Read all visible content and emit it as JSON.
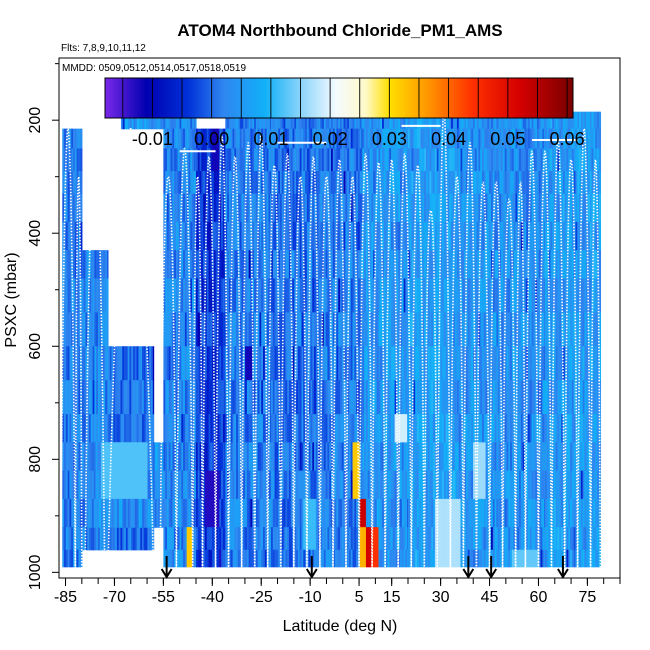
{
  "chart_data": {
    "type": "heatmap",
    "title": "ATOM4 Northbound Chloride_PM1_AMS",
    "flights_label": "Flts: 7,8,9,10,11,12",
    "dates_label": "MMDD: 0509,0512,0514,0517,0518,0519",
    "xlabel": "Latitude (deg N)",
    "ylabel": "PSXC (mbar)",
    "xlim": [
      -87,
      85
    ],
    "ylim": [
      1010,
      90
    ],
    "x_tick_labels": [
      "-85",
      "-70",
      "-55",
      "-40",
      "-25",
      "-10",
      "5",
      "15",
      "30",
      "45",
      "60",
      "75"
    ],
    "x_tick_values": [
      -85,
      -70,
      -55,
      -40,
      -25,
      -10,
      5,
      15,
      30,
      45,
      60,
      75
    ],
    "x_minor_ticks": [
      -85,
      -80,
      -75,
      -70,
      -65,
      -60,
      -55,
      -50,
      -45,
      -40,
      -35,
      -30,
      -25,
      -20,
      -15,
      -10,
      -5,
      0,
      5,
      10,
      15,
      20,
      25,
      30,
      35,
      40,
      45,
      50,
      55,
      60,
      65,
      70,
      75,
      80,
      85
    ],
    "y_tick_labels": [
      "200",
      "400",
      "600",
      "800",
      "1000"
    ],
    "y_tick_values": [
      200,
      400,
      600,
      800,
      1000
    ],
    "colorbar": {
      "min": -0.018,
      "max": 0.061,
      "tick_labels": [
        "-0.01",
        "0.00",
        "0.01",
        "0.02",
        "0.03",
        "0.04",
        "0.05",
        "0.06"
      ],
      "tick_values": [
        -0.01,
        0.0,
        0.01,
        0.02,
        0.03,
        0.04,
        0.05,
        0.06
      ],
      "stops": [
        {
          "v": -0.018,
          "c": "#7a28e8"
        },
        {
          "v": -0.011,
          "c": "#0000b0"
        },
        {
          "v": -0.004,
          "c": "#0030d8"
        },
        {
          "v": 0.002,
          "c": "#2f86f0"
        },
        {
          "v": 0.009,
          "c": "#11b0f8"
        },
        {
          "v": 0.015,
          "c": "#8ad4fa"
        },
        {
          "v": 0.021,
          "c": "#f4fbff"
        },
        {
          "v": 0.026,
          "c": "#fff9c8"
        },
        {
          "v": 0.03,
          "c": "#ffe000"
        },
        {
          "v": 0.037,
          "c": "#ff9000"
        },
        {
          "v": 0.044,
          "c": "#ff3000"
        },
        {
          "v": 0.052,
          "c": "#d40000"
        },
        {
          "v": 0.061,
          "c": "#780000"
        }
      ]
    },
    "arrow_latitudes": [
      -54,
      -9.5,
      38.5,
      45.5,
      67.5
    ],
    "background_value": 0.004,
    "pressure_levels": [
      185,
      215,
      250,
      290,
      330,
      380,
      430,
      480,
      540,
      600,
      660,
      720,
      770,
      820,
      870,
      920,
      960,
      990
    ],
    "columns": [
      {
        "lat": [
          -86,
          -80
        ],
        "p": [
          210,
          990
        ],
        "base": 0.002
      },
      {
        "lat": [
          -80,
          -72
        ],
        "p": [
          440,
          960
        ],
        "base": 0.003
      },
      {
        "lat": [
          -72,
          -58
        ],
        "p": [
          600,
          970
        ],
        "base": 0.001
      },
      {
        "lat": [
          -78,
          -55
        ],
        "p": [
          760,
          900
        ],
        "base": 0.0045
      },
      {
        "lat": [
          -68,
          -52
        ],
        "p": [
          160,
          200
        ],
        "base": 0.005
      },
      {
        "lat": [
          -55,
          -45
        ],
        "p": [
          160,
          990
        ],
        "base": 0.003
      },
      {
        "lat": [
          -45,
          -36
        ],
        "p": [
          230,
          980
        ],
        "base": -0.004
      },
      {
        "lat": [
          -36,
          -22
        ],
        "p": [
          160,
          990
        ],
        "base": 0.002
      },
      {
        "lat": [
          -22,
          -8
        ],
        "p": [
          160,
          990
        ],
        "base": 0.001
      },
      {
        "lat": [
          -8,
          6
        ],
        "p": [
          160,
          990
        ],
        "base": 0.002
      },
      {
        "lat": [
          6,
          20
        ],
        "p": [
          160,
          990
        ],
        "base": 0.005
      },
      {
        "lat": [
          20,
          35
        ],
        "p": [
          160,
          990
        ],
        "base": 0.006
      },
      {
        "lat": [
          35,
          48
        ],
        "p": [
          160,
          990
        ],
        "base": 0.0045
      },
      {
        "lat": [
          48,
          62
        ],
        "p": [
          160,
          990
        ],
        "base": 0.004
      },
      {
        "lat": [
          62,
          79
        ],
        "p": [
          180,
          990
        ],
        "base": 0.0055
      }
    ],
    "hotspots": [
      {
        "lat": [
          7,
          9
        ],
        "p": [
          920,
          1000
        ],
        "value": 0.052
      },
      {
        "lat": [
          9,
          11
        ],
        "p": [
          920,
          1000
        ],
        "value": 0.044
      },
      {
        "lat": [
          5,
          7
        ],
        "p": [
          920,
          1000
        ],
        "value": 0.034
      },
      {
        "lat": [
          3,
          5
        ],
        "p": [
          750,
          860
        ],
        "value": 0.032
      },
      {
        "lat": [
          5,
          7
        ],
        "p": [
          850,
          920
        ],
        "value": 0.053
      },
      {
        "lat": [
          -48,
          -46
        ],
        "p": [
          910,
          990
        ],
        "value": 0.032
      },
      {
        "lat": [
          -42,
          -38
        ],
        "p": [
          830,
          900
        ],
        "value": -0.013
      },
      {
        "lat": [
          -30,
          -28
        ],
        "p": [
          600,
          680
        ],
        "value": -0.012
      },
      {
        "lat": [
          -40,
          -38
        ],
        "p": [
          230,
          280
        ],
        "value": -0.012
      },
      {
        "lat": [
          40,
          44
        ],
        "p": [
          750,
          880
        ],
        "value": 0.016
      },
      {
        "lat": [
          28,
          36
        ],
        "p": [
          860,
          990
        ],
        "value": 0.017
      },
      {
        "lat": [
          -74,
          -60
        ],
        "p": [
          760,
          870
        ],
        "value": 0.012
      },
      {
        "lat": [
          16,
          20
        ],
        "p": [
          700,
          760
        ],
        "value": 0.019
      },
      {
        "lat": [
          -12,
          -8
        ],
        "p": [
          860,
          960
        ],
        "value": 0.011
      },
      {
        "lat": [
          52,
          60
        ],
        "p": [
          960,
          1000
        ],
        "value": 0.013
      }
    ],
    "profiles": [
      {
        "lat": [
          -86.5,
          -82
        ],
        "top": 215
      },
      {
        "lat": [
          -82,
          -80
        ],
        "top": 300
      },
      {
        "lat": [
          -79,
          -73
        ],
        "top": 215
      },
      {
        "lat": [
          -72,
          -58
        ],
        "top": 215
      },
      {
        "lat": [
          -56,
          -51
        ],
        "top": 300
      },
      {
        "lat": [
          -51,
          -46
        ],
        "top": 250
      },
      {
        "lat": [
          -46,
          -43
        ],
        "top": 300
      },
      {
        "lat": [
          -43,
          -39
        ],
        "top": 265
      },
      {
        "lat": [
          -39,
          -35
        ],
        "top": 230
      },
      {
        "lat": [
          -35,
          -31
        ],
        "top": 265
      },
      {
        "lat": [
          -31,
          -27
        ],
        "top": 240
      },
      {
        "lat": [
          -27,
          -23
        ],
        "top": 225
      },
      {
        "lat": [
          -23,
          -19
        ],
        "top": 280
      },
      {
        "lat": [
          -19,
          -15
        ],
        "top": 260
      },
      {
        "lat": [
          -15,
          -11
        ],
        "top": 300
      },
      {
        "lat": [
          -11,
          -7
        ],
        "top": 265
      },
      {
        "lat": [
          -7,
          -3
        ],
        "top": 300
      },
      {
        "lat": [
          -3,
          1
        ],
        "top": 270
      },
      {
        "lat": [
          1,
          5
        ],
        "top": 300
      },
      {
        "lat": [
          5,
          9
        ],
        "top": 260
      },
      {
        "lat": [
          9,
          13
        ],
        "top": 275
      },
      {
        "lat": [
          13,
          17
        ],
        "top": 270
      },
      {
        "lat": [
          17,
          21
        ],
        "top": 260
      },
      {
        "lat": [
          21,
          25
        ],
        "top": 280
      },
      {
        "lat": [
          25,
          29
        ],
        "top": 360
      },
      {
        "lat": [
          29,
          33
        ],
        "top": 180
      },
      {
        "lat": [
          33,
          37
        ],
        "top": 300
      },
      {
        "lat": [
          37,
          41
        ],
        "top": 240
      },
      {
        "lat": [
          41,
          45
        ],
        "top": 310
      },
      {
        "lat": [
          45,
          49
        ],
        "top": 310
      },
      {
        "lat": [
          49,
          53
        ],
        "top": 340
      },
      {
        "lat": [
          53,
          56
        ],
        "top": 310
      },
      {
        "lat": [
          56,
          60
        ],
        "top": 255
      },
      {
        "lat": [
          60,
          64
        ],
        "top": 255
      },
      {
        "lat": [
          64,
          68
        ],
        "top": 230
      },
      {
        "lat": [
          68,
          72
        ],
        "top": 270
      },
      {
        "lat": [
          72,
          76
        ],
        "top": 215
      },
      {
        "lat": [
          76,
          79
        ],
        "top": 270
      }
    ],
    "flight_tops": [
      {
        "lat": [
          -78,
          -70
        ],
        "p": 210
      },
      {
        "lat": [
          -50,
          -39
        ],
        "p": 255
      },
      {
        "lat": [
          -20,
          -5
        ],
        "p": 240
      },
      {
        "lat": [
          18,
          30
        ],
        "p": 210
      },
      {
        "lat": [
          58,
          72
        ],
        "p": 235
      }
    ]
  }
}
